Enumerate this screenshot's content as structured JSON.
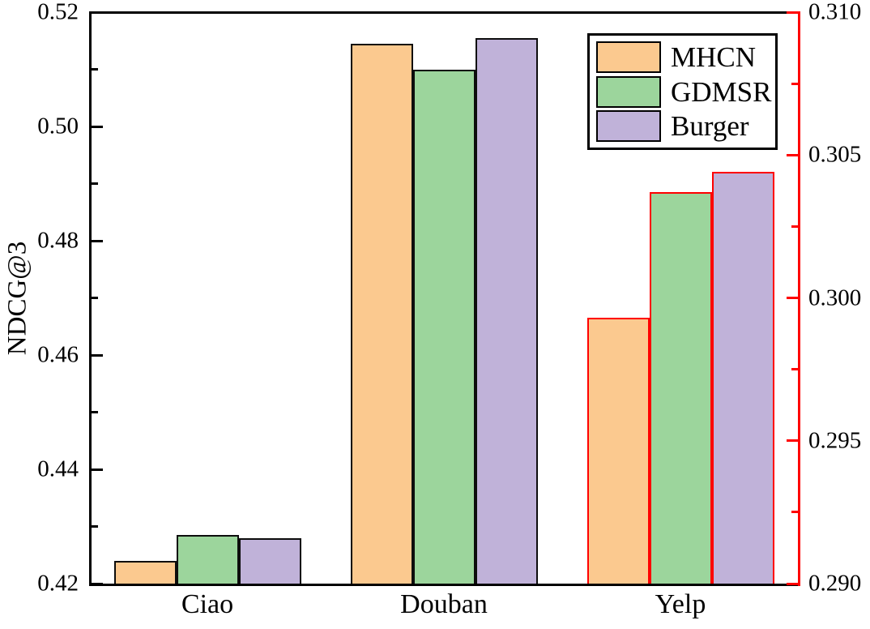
{
  "chart_data": {
    "type": "bar",
    "title": "",
    "ylabel_left": "NDCG@3",
    "categories": [
      "Ciao",
      "Douban",
      "Yelp"
    ],
    "category_axis": [
      "left",
      "left",
      "right"
    ],
    "series": [
      {
        "name": "MHCN",
        "fill": "#FBC98F",
        "values": [
          0.424,
          0.5145,
          0.2993
        ]
      },
      {
        "name": "GDMSR",
        "fill": "#9CD59C",
        "values": [
          0.4285,
          0.51,
          0.3037
        ]
      },
      {
        "name": "Burger",
        "fill": "#C0B2D9",
        "values": [
          0.428,
          0.5155,
          0.3044
        ]
      }
    ],
    "left_axis": {
      "min": 0.42,
      "max": 0.52,
      "color": "#000000",
      "major_ticks": [
        {
          "value": 0.52,
          "label": "0.52"
        },
        {
          "value": 0.5,
          "label": "0.50"
        },
        {
          "value": 0.48,
          "label": "0.48"
        },
        {
          "value": 0.46,
          "label": "0.46"
        },
        {
          "value": 0.44,
          "label": "0.44"
        },
        {
          "value": 0.42,
          "label": "0.42"
        }
      ],
      "minor_ticks": [
        0.51,
        0.49,
        0.47,
        0.45,
        0.43
      ]
    },
    "right_axis": {
      "min": 0.29,
      "max": 0.31,
      "color": "#FF0000",
      "major_ticks": [
        {
          "value": 0.31,
          "label": "0.310"
        },
        {
          "value": 0.305,
          "label": "0.305"
        },
        {
          "value": 0.3,
          "label": "0.300"
        },
        {
          "value": 0.295,
          "label": "0.295"
        },
        {
          "value": 0.29,
          "label": "0.290"
        }
      ],
      "minor_ticks": [
        0.3075,
        0.3025,
        0.2975,
        0.2925
      ]
    },
    "bar_border_left_axis": "#0d0d0d",
    "bar_border_right_axis": "#FF0000",
    "legend": {
      "position": "top-right",
      "entries": [
        "MHCN",
        "GDMSR",
        "Burger"
      ]
    },
    "grid": "off"
  }
}
